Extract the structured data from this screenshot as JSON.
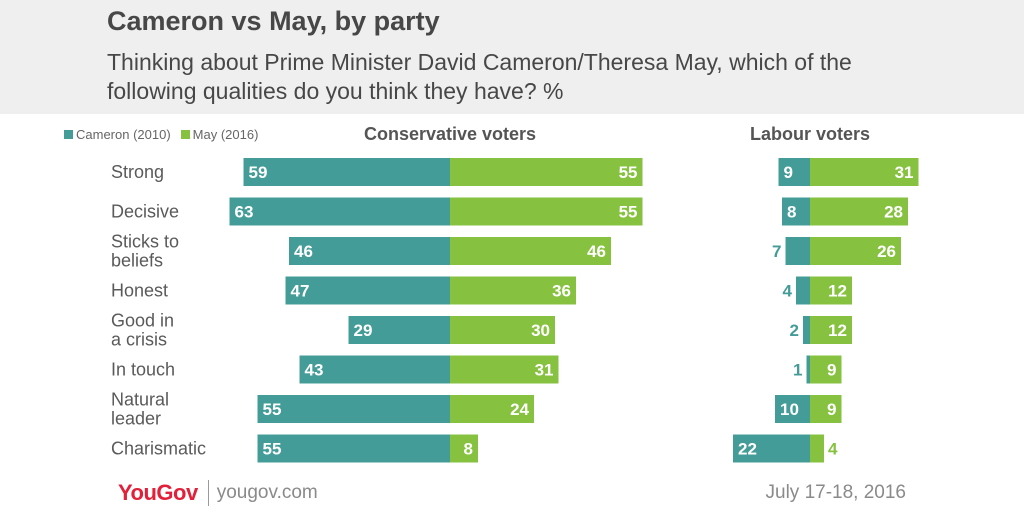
{
  "title": "Cameron vs May, by party",
  "subtitle": "Thinking about Prime Minister David Cameron/Theresa May, which of the following qualities do you think they have? %",
  "legend": {
    "cameron": "Cameron (2010)",
    "may": "May (2016)"
  },
  "colors": {
    "cameron": "#449c98",
    "may": "#86c23f",
    "label": "#5a5a5a"
  },
  "footer": {
    "logo": "YouGov",
    "site": "yougov.com",
    "date": "July 17-18, 2016"
  },
  "chart_data": [
    {
      "type": "bar",
      "title": "Conservative voters",
      "categories": [
        "Strong",
        "Decisive",
        "Sticks to\nbeliefs",
        "Honest",
        "Good in\na crisis",
        "In touch",
        "Natural\nleader",
        "Charismatic"
      ],
      "series": [
        {
          "name": "Cameron (2010)",
          "values": [
            59,
            63,
            46,
            47,
            29,
            43,
            55,
            55
          ]
        },
        {
          "name": "May (2016)",
          "values": [
            55,
            55,
            46,
            36,
            30,
            31,
            24,
            8
          ]
        }
      ]
    },
    {
      "type": "bar",
      "title": "Labour voters",
      "categories": [
        "Strong",
        "Decisive",
        "Sticks to\nbeliefs",
        "Honest",
        "Good in\na crisis",
        "In touch",
        "Natural\nleader",
        "Charismatic"
      ],
      "series": [
        {
          "name": "Cameron (2010)",
          "values": [
            9,
            8,
            7,
            4,
            2,
            1,
            10,
            22
          ]
        },
        {
          "name": "May (2016)",
          "values": [
            31,
            28,
            26,
            12,
            12,
            9,
            9,
            4
          ]
        }
      ]
    }
  ]
}
